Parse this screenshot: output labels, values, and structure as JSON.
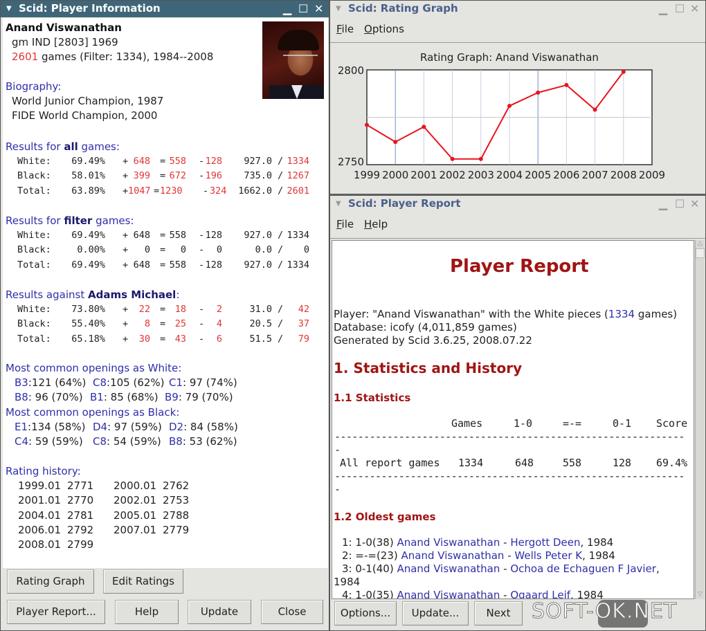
{
  "info_window": {
    "title": "Scid: Player Information",
    "player_name": "Anand Viswanathan",
    "title_line": "gm  IND [2803] 1969",
    "games_count": "2601",
    "games_rest": " games (Filter: 1334), 1984--2008",
    "biography_label": "Biography:",
    "biography": [
      "World Junior Champion, 1987",
      "FIDE World Champion, 2000"
    ],
    "results": [
      {
        "heading_pre": "Results for ",
        "heading_bold": "all",
        "heading_post": " games:",
        "highlight": true,
        "rows": [
          {
            "label": "White:",
            "pct": "69.49%",
            "win": "648",
            "draw": "558",
            "loss": "128",
            "score": "927.0",
            "total": "1334"
          },
          {
            "label": "Black:",
            "pct": "58.01%",
            "win": "399",
            "draw": "672",
            "loss": "196",
            "score": "735.0",
            "total": "1267"
          },
          {
            "label": "Total:",
            "pct": "63.89%",
            "win": "1047",
            "draw": "1230",
            "loss": "324",
            "score": "1662.0",
            "total": "2601"
          }
        ]
      },
      {
        "heading_pre": "Results for ",
        "heading_bold": "filter",
        "heading_post": " games:",
        "highlight": false,
        "rows": [
          {
            "label": "White:",
            "pct": "69.49%",
            "win": "648",
            "draw": "558",
            "loss": "128",
            "score": "927.0",
            "total": "1334"
          },
          {
            "label": "Black:",
            "pct": "0.00%",
            "win": "0",
            "draw": "0",
            "loss": "0",
            "score": "0.0",
            "total": "0"
          },
          {
            "label": "Total:",
            "pct": "69.49%",
            "win": "648",
            "draw": "558",
            "loss": "128",
            "score": "927.0",
            "total": "1334"
          }
        ]
      },
      {
        "heading_pre": "Results against ",
        "heading_bold": "Adams Michael",
        "heading_post": ":",
        "highlight": true,
        "rows": [
          {
            "label": "White:",
            "pct": "73.80%",
            "win": "22",
            "draw": "18",
            "loss": "2",
            "score": "31.0",
            "total": "42"
          },
          {
            "label": "Black:",
            "pct": "55.40%",
            "win": "8",
            "draw": "25",
            "loss": "4",
            "score": "20.5",
            "total": "37"
          },
          {
            "label": "Total:",
            "pct": "65.18%",
            "win": "30",
            "draw": "43",
            "loss": "6",
            "score": "51.5",
            "total": "79"
          }
        ]
      }
    ],
    "openings_white_label": "Most common openings as White:",
    "openings_white": [
      [
        {
          "eco": "B3",
          "stat": ":121 (64%)"
        },
        {
          "eco": "C8",
          "stat": ":105 (62%)"
        },
        {
          "eco": "C1",
          "stat": ": 97 (74%)"
        }
      ],
      [
        {
          "eco": "B8",
          "stat": ": 96 (70%)"
        },
        {
          "eco": "B1",
          "stat": ": 85 (68%)"
        },
        {
          "eco": "B9",
          "stat": ": 79 (70%)"
        }
      ]
    ],
    "openings_black_label": "Most common openings as Black:",
    "openings_black": [
      [
        {
          "eco": "E1",
          "stat": ":134 (58%)"
        },
        {
          "eco": "D4",
          "stat": ": 97 (59%)"
        },
        {
          "eco": "D2",
          "stat": ": 84 (58%)"
        }
      ],
      [
        {
          "eco": "C4",
          "stat": ": 59 (59%)"
        },
        {
          "eco": "C8",
          "stat": ": 54 (59%)"
        },
        {
          "eco": "B8",
          "stat": ": 53 (62%)"
        }
      ]
    ],
    "rating_history_label": "Rating history:",
    "rating_history": [
      {
        "date": "1999.01",
        "rating": "2771"
      },
      {
        "date": "2000.01",
        "rating": "2762"
      },
      {
        "date": "2001.01",
        "rating": "2770"
      },
      {
        "date": "2002.01",
        "rating": "2753"
      },
      {
        "date": "2004.01",
        "rating": "2781"
      },
      {
        "date": "2005.01",
        "rating": "2788"
      },
      {
        "date": "2006.01",
        "rating": "2792"
      },
      {
        "date": "2007.01",
        "rating": "2779"
      },
      {
        "date": "2008.01",
        "rating": "2799"
      }
    ],
    "buttons": {
      "rating_graph": "Rating Graph",
      "edit_ratings": "Edit Ratings",
      "player_report": "Player Report...",
      "help": "Help",
      "update": "Update",
      "close": "Close"
    }
  },
  "graph_window": {
    "title": "Scid: Rating Graph",
    "menu": [
      "File",
      "Options"
    ]
  },
  "chart_data": {
    "type": "line",
    "title": "Rating Graph: Anand Viswanathan",
    "x": [
      1999,
      2000,
      2001,
      2002,
      2003,
      2004,
      2005,
      2006,
      2007,
      2008
    ],
    "y": [
      2771,
      2762,
      2770,
      2753,
      2753,
      2781,
      2788,
      2792,
      2779,
      2799
    ],
    "xlim": [
      1999,
      2009
    ],
    "ylim": [
      2750,
      2800
    ],
    "xticks": [
      "1999",
      "2000",
      "2001",
      "2002",
      "2003",
      "2004",
      "2005",
      "2006",
      "2007",
      "2008",
      "2009"
    ],
    "yticks": [
      "2750",
      "2800"
    ],
    "grid": true,
    "line_color": "#e8141e"
  },
  "report_window": {
    "title": "Scid: Player Report",
    "menu": [
      "File",
      "Help"
    ],
    "heading": "Player Report",
    "player_pre": "Player: \"Anand Viswanathan\" with the White pieces (",
    "player_games": "1334",
    "player_post": " games)",
    "database": "Database: icofy (4,011,859 games)",
    "generated": "Generated by Scid 3.6.25, 2008.07.22",
    "section1": "1. Statistics and History",
    "section11": "1.1 Statistics",
    "table_header": [
      "Games",
      "1-0",
      "=-=",
      "0-1",
      "Score"
    ],
    "table_rule": "------------------------------------------------------------",
    "table_rule_tail": "-",
    "table_row": {
      "label": "All report games",
      "games": "1334",
      "wins": "648",
      "draws": "558",
      "losses": "128",
      "score": "69.4%"
    },
    "section12": "1.2 Oldest games",
    "oldest_games": [
      {
        "num": "1:",
        "result": "1-0(38)",
        "white": "Anand Viswanathan",
        "black": "Hergott Deen",
        "year": "1984"
      },
      {
        "num": "2:",
        "result": "=-=(23)",
        "white": "Anand Viswanathan",
        "black": "Wells Peter K",
        "year": "1984"
      },
      {
        "num": "3:",
        "result": "0-1(40)",
        "white": "Anand Viswanathan",
        "black": "Ochoa de Echaguen F Javier",
        "year": "1984"
      },
      {
        "num": "4:",
        "result": "1-0(35)",
        "white": "Anand Viswanathan",
        "black": "Ogaard Leif",
        "year": "1984"
      }
    ],
    "buttons": {
      "options": "Options...",
      "update": "Update...",
      "next": "Next"
    }
  },
  "watermark": "SOFT-OK.NET"
}
